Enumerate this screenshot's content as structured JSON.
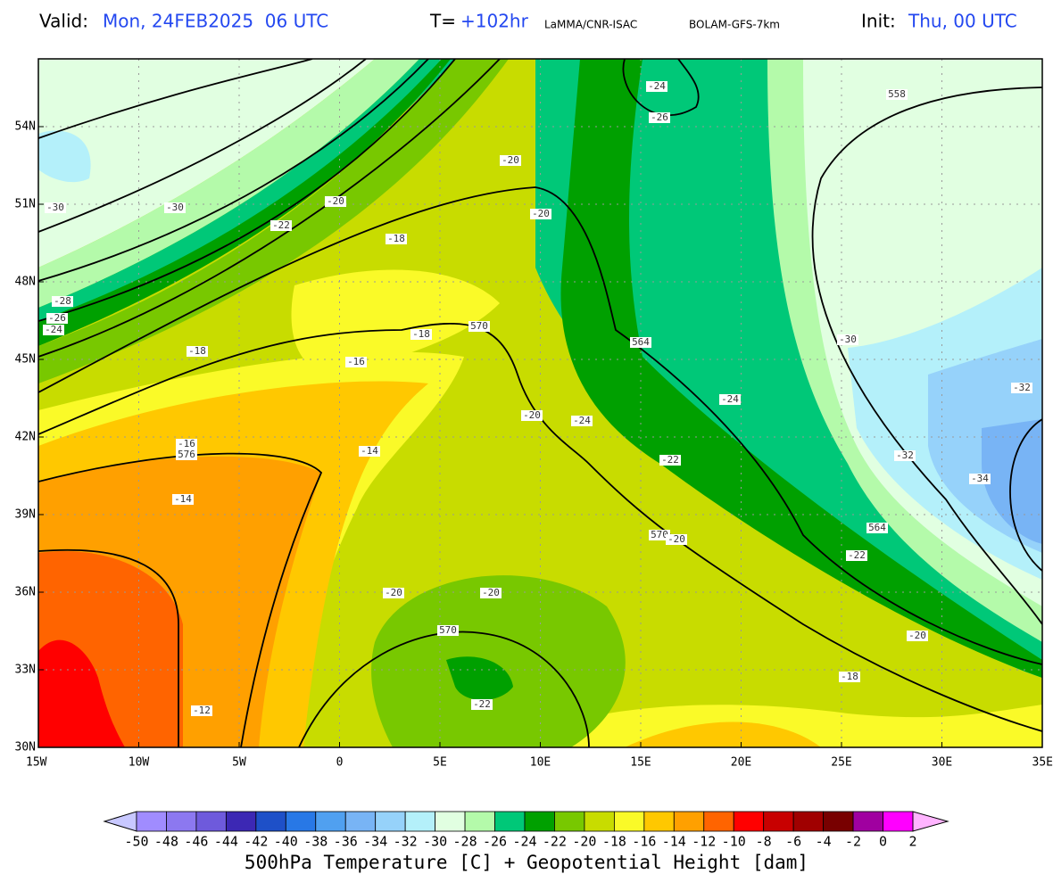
{
  "header": {
    "valid_label": "Valid:",
    "valid_value": "Mon, 24FEB2025  06 UTC",
    "t_label": "T=",
    "t_value": "+102hr",
    "source": "LaMMA/CNR-ISAC",
    "model": "BOLAM-GFS-7km",
    "init_label": "Init:",
    "init_value": "Thu, 00 UTC"
  },
  "map": {
    "lat_labels": [
      "54N",
      "51N",
      "48N",
      "45N",
      "42N",
      "39N",
      "36N",
      "33N",
      "30N"
    ],
    "lon_labels": [
      "15W",
      "10W",
      "5W",
      "0",
      "5E",
      "10E",
      "15E",
      "20E",
      "25E",
      "30E",
      "35E"
    ],
    "contour_labels": [
      "558",
      "-24",
      "-26",
      "-20",
      "-30",
      "-30",
      "-20",
      "-22",
      "-20",
      "-18",
      "-28",
      "-26",
      "-24",
      "570",
      "-18",
      "564",
      "-30",
      "-18",
      "-16",
      "-32",
      "-24",
      "-20",
      "-24",
      "-16",
      "576",
      "-14",
      "-22",
      "-32",
      "-34",
      "-14",
      "564",
      "570",
      "-20",
      "-22",
      "-20",
      "-20",
      "570",
      "-20",
      "-18",
      "-22",
      "-12"
    ]
  },
  "colorbar": {
    "labels": [
      "-50",
      "-48",
      "-46",
      "-44",
      "-42",
      "-40",
      "-38",
      "-36",
      "-34",
      "-32",
      "-30",
      "-28",
      "-26",
      "-24",
      "-22",
      "-20",
      "-18",
      "-16",
      "-14",
      "-12",
      "-10",
      "-8",
      "-6",
      "-4",
      "-2",
      "0",
      "2"
    ],
    "colors": [
      "#c8c8ff",
      "#a08cff",
      "#8c78f0",
      "#6e5adc",
      "#3c28b4",
      "#1e50c8",
      "#2878e6",
      "#50a0f0",
      "#78b4f5",
      "#96d2fa",
      "#b4f0fa",
      "#e1ffe1",
      "#b4faaa",
      "#00c878",
      "#00a000",
      "#78c800",
      "#c8dc00",
      "#fafa28",
      "#ffc800",
      "#ffa000",
      "#ff6400",
      "#ff0000",
      "#c80000",
      "#a00000",
      "#780000",
      "#a000a0",
      "#ff00ff",
      "#ffb4ff"
    ],
    "title": "500hPa Temperature [C] + Geopotential Height [dam]"
  }
}
